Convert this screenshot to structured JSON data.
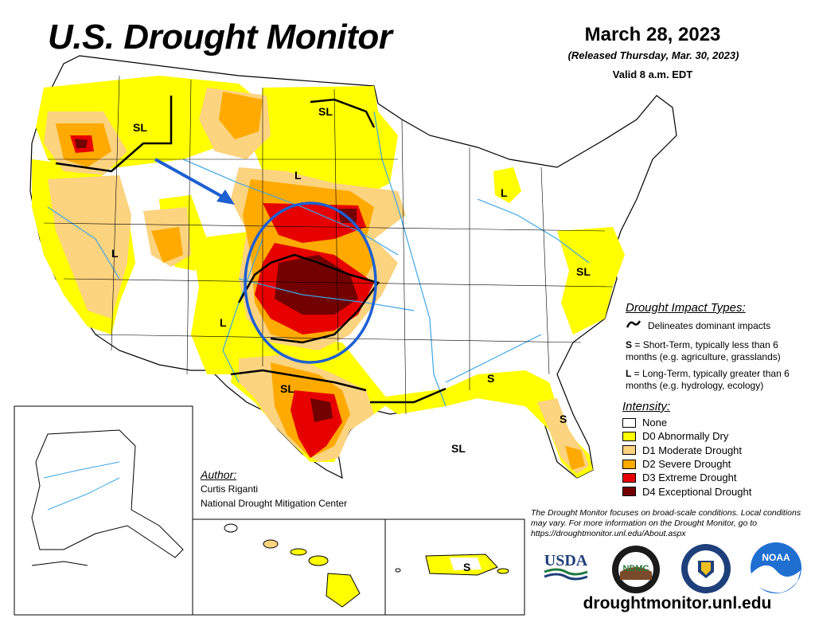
{
  "header": {
    "title": "U.S. Drought Monitor",
    "date": "March 28, 2023",
    "released": "(Released Thursday, Mar. 30, 2023)",
    "valid": "Valid 8 a.m. EDT"
  },
  "impact_types": {
    "title": "Drought Impact Types:",
    "line_label": "Delineates dominant impacts",
    "short_term_key": "S",
    "short_term_desc": " = Short-Term, typically less than 6 months (e.g. agriculture, grasslands)",
    "long_term_key": "L",
    "long_term_desc": " = Long-Term, typically greater than 6 months (e.g. hydrology, ecology)"
  },
  "intensity": {
    "title": "Intensity:",
    "levels": [
      {
        "label": "None",
        "color": "#ffffff"
      },
      {
        "label": "D0 Abnormally Dry",
        "color": "#ffff00"
      },
      {
        "label": "D1 Moderate Drought",
        "color": "#fcd37f"
      },
      {
        "label": "D2 Severe Drought",
        "color": "#ffaa00"
      },
      {
        "label": "D3 Extreme Drought",
        "color": "#e60000"
      },
      {
        "label": "D4 Exceptional Drought",
        "color": "#730000"
      }
    ]
  },
  "author": {
    "label": "Author:",
    "name": "Curtis Riganti",
    "org": "National Drought Mitigation Center"
  },
  "notice": "The Drought Monitor focuses on broad-scale conditions. Local conditions may vary. For more information on the Drought Monitor, go to https://droughtmonitor.unl.edu/About.aspx",
  "url": "droughtmonitor.unl.edu",
  "logos": {
    "usda": "USDA",
    "ndmc": "NDMC",
    "noaa": "NOAA"
  },
  "map_labels": {
    "sl_idaho": "SL",
    "sl_north_dakota": "SL",
    "l_south_dakota": "L",
    "l_nevada": "L",
    "l_new_mexico": "L",
    "sl_texas": "SL",
    "sl_gulf": "SL",
    "l_michigan": "L",
    "sl_virginia": "SL",
    "s_georgia": "S",
    "s_florida": "S",
    "s_puerto_rico": "S"
  },
  "colors": {
    "D0": "#ffff00",
    "D1": "#fcd37f",
    "D2": "#ffaa00",
    "D3": "#e60000",
    "D4": "#730000",
    "rivers": "#3ba6e6",
    "annotation": "#1e5fd1"
  }
}
